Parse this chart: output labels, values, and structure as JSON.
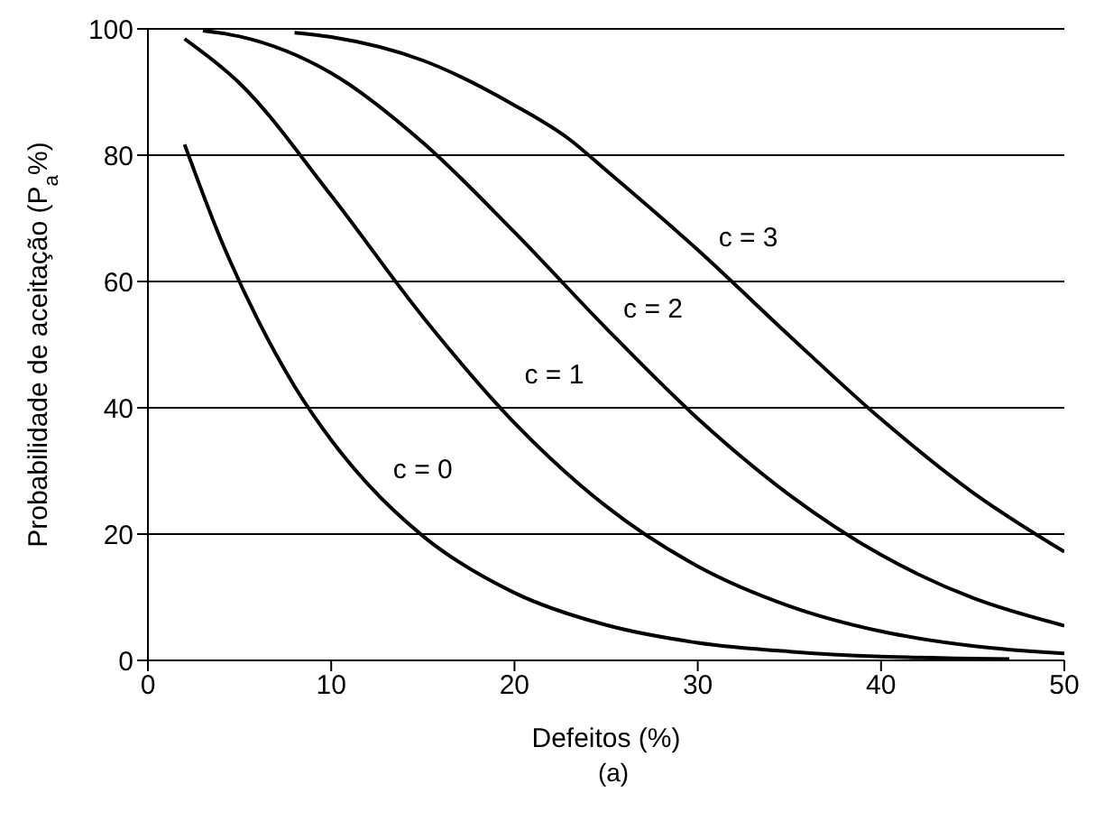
{
  "chart_data": {
    "type": "line",
    "xlabel": "Defeitos (%)",
    "ylabel": "Probabilidade de aceitação (P$_{a}$%)",
    "xlim": [
      0,
      50
    ],
    "xticks": [
      0,
      10,
      20,
      30,
      40,
      50
    ],
    "ylim": [
      0,
      100
    ],
    "yticks": [
      0,
      20,
      40,
      60,
      80,
      100
    ],
    "grid": "y",
    "legend": false,
    "marker": "none",
    "line_style": "solid",
    "series": [
      {
        "name": "c = 0",
        "color": "#000000",
        "x": [
          2,
          4,
          6,
          8,
          10,
          12,
          15,
          20,
          25,
          30,
          35,
          40,
          45,
          47
        ],
        "values": [
          81.7,
          66.5,
          53.9,
          43.4,
          34.9,
          27.9,
          19.7,
          10.7,
          5.6,
          2.8,
          1.4,
          0.6,
          0.3,
          0.2
        ]
      },
      {
        "name": "c = 1",
        "color": "#000000",
        "x": [
          2,
          5,
          10,
          15,
          20,
          25,
          30,
          35,
          40,
          45,
          50
        ],
        "values": [
          98.4,
          91.4,
          73.6,
          54.4,
          37.6,
          24.4,
          14.9,
          8.6,
          4.6,
          2.3,
          1.1
        ]
      },
      {
        "name": "c = 2",
        "color": "#000000",
        "x": [
          3,
          5,
          10,
          15,
          20,
          25,
          30,
          35,
          40,
          45,
          50
        ],
        "values": [
          99.7,
          98.8,
          93.0,
          82.0,
          67.8,
          52.6,
          38.3,
          26.2,
          16.7,
          9.9,
          5.5
        ]
      },
      {
        "name": "c = 3",
        "color": "#000000",
        "x": [
          8,
          10,
          15,
          20,
          23,
          25,
          30,
          35,
          40,
          45,
          50
        ],
        "values": [
          99.4,
          98.7,
          95.0,
          87.9,
          82.5,
          77.6,
          65.0,
          51.4,
          38.2,
          26.6,
          17.2
        ]
      }
    ],
    "annotations": [
      "(a)"
    ]
  }
}
